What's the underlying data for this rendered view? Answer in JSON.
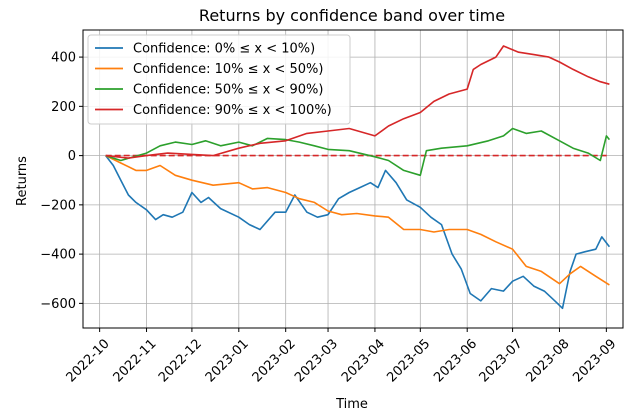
{
  "chart_data": {
    "type": "line",
    "title": "Returns by confidence band over time",
    "xlabel": "Time",
    "ylabel": "Returns",
    "xlim": [
      "2022-09-20",
      "2023-09-12"
    ],
    "ylim": [
      -700,
      510
    ],
    "grid": true,
    "legend_position": "top-left",
    "x_ticks": [
      "2022-10",
      "2022-11",
      "2022-12",
      "2023-01",
      "2023-02",
      "2023-03",
      "2023-04",
      "2023-05",
      "2023-06",
      "2023-07",
      "2023-08",
      "2023-09"
    ],
    "y_ticks": [
      -600,
      -400,
      -200,
      0,
      200,
      400
    ],
    "y_tick_labels": [
      "−600",
      "−400",
      "−200",
      "0",
      "200",
      "400"
    ],
    "reference_line": {
      "y": 0,
      "color": "#d62728",
      "style": "dashed"
    },
    "series": [
      {
        "name": "Confidence: 0% ≤ x < 10%)",
        "color": "#1f77b4",
        "points": [
          [
            "2022-10-05",
            0
          ],
          [
            "2022-10-10",
            -40
          ],
          [
            "2022-10-15",
            -100
          ],
          [
            "2022-10-20",
            -160
          ],
          [
            "2022-10-25",
            -190
          ],
          [
            "2022-11-01",
            -220
          ],
          [
            "2022-11-07",
            -260
          ],
          [
            "2022-11-12",
            -240
          ],
          [
            "2022-11-18",
            -250
          ],
          [
            "2022-11-25",
            -230
          ],
          [
            "2022-12-01",
            -150
          ],
          [
            "2022-12-07",
            -190
          ],
          [
            "2022-12-12",
            -170
          ],
          [
            "2022-12-20",
            -215
          ],
          [
            "2023-01-01",
            -250
          ],
          [
            "2023-01-08",
            -280
          ],
          [
            "2023-01-15",
            -300
          ],
          [
            "2023-01-25",
            -230
          ],
          [
            "2023-02-01",
            -230
          ],
          [
            "2023-02-07",
            -160
          ],
          [
            "2023-02-15",
            -230
          ],
          [
            "2023-02-22",
            -250
          ],
          [
            "2023-03-01",
            -240
          ],
          [
            "2023-03-08",
            -175
          ],
          [
            "2023-03-15",
            -150
          ],
          [
            "2023-03-22",
            -130
          ],
          [
            "2023-03-29",
            -110
          ],
          [
            "2023-04-03",
            -130
          ],
          [
            "2023-04-08",
            -60
          ],
          [
            "2023-04-15",
            -110
          ],
          [
            "2023-04-22",
            -180
          ],
          [
            "2023-05-01",
            -210
          ],
          [
            "2023-05-08",
            -250
          ],
          [
            "2023-05-15",
            -280
          ],
          [
            "2023-05-22",
            -400
          ],
          [
            "2023-05-28",
            -460
          ],
          [
            "2023-06-03",
            -560
          ],
          [
            "2023-06-10",
            -590
          ],
          [
            "2023-06-17",
            -540
          ],
          [
            "2023-06-25",
            -550
          ],
          [
            "2023-07-01",
            -510
          ],
          [
            "2023-07-08",
            -490
          ],
          [
            "2023-07-15",
            -530
          ],
          [
            "2023-07-22",
            -550
          ],
          [
            "2023-07-29",
            -590
          ],
          [
            "2023-08-03",
            -620
          ],
          [
            "2023-08-08",
            -470
          ],
          [
            "2023-08-12",
            -400
          ],
          [
            "2023-08-18",
            -390
          ],
          [
            "2023-08-25",
            -380
          ],
          [
            "2023-08-29",
            -330
          ],
          [
            "2023-09-03",
            -370
          ]
        ]
      },
      {
        "name": "Confidence: 10% ≤ x < 50%)",
        "color": "#ff7f0e",
        "points": [
          [
            "2022-10-05",
            0
          ],
          [
            "2022-10-15",
            -30
          ],
          [
            "2022-10-25",
            -60
          ],
          [
            "2022-11-01",
            -60
          ],
          [
            "2022-11-10",
            -40
          ],
          [
            "2022-11-20",
            -80
          ],
          [
            "2022-12-01",
            -100
          ],
          [
            "2022-12-15",
            -120
          ],
          [
            "2023-01-01",
            -110
          ],
          [
            "2023-01-10",
            -135
          ],
          [
            "2023-01-20",
            -130
          ],
          [
            "2023-02-01",
            -150
          ],
          [
            "2023-02-10",
            -175
          ],
          [
            "2023-02-20",
            -190
          ],
          [
            "2023-03-01",
            -225
          ],
          [
            "2023-03-10",
            -240
          ],
          [
            "2023-03-20",
            -235
          ],
          [
            "2023-04-01",
            -245
          ],
          [
            "2023-04-10",
            -250
          ],
          [
            "2023-04-20",
            -300
          ],
          [
            "2023-05-01",
            -300
          ],
          [
            "2023-05-10",
            -310
          ],
          [
            "2023-05-20",
            -300
          ],
          [
            "2023-06-01",
            -300
          ],
          [
            "2023-06-10",
            -320
          ],
          [
            "2023-06-20",
            -350
          ],
          [
            "2023-07-01",
            -380
          ],
          [
            "2023-07-10",
            -450
          ],
          [
            "2023-07-20",
            -470
          ],
          [
            "2023-08-01",
            -520
          ],
          [
            "2023-08-08",
            -480
          ],
          [
            "2023-08-15",
            -450
          ],
          [
            "2023-08-25",
            -490
          ],
          [
            "2023-09-03",
            -525
          ]
        ]
      },
      {
        "name": "Confidence: 50% ≤ x < 90%)",
        "color": "#2ca02c",
        "points": [
          [
            "2022-10-05",
            0
          ],
          [
            "2022-10-15",
            -20
          ],
          [
            "2022-11-01",
            10
          ],
          [
            "2022-11-10",
            40
          ],
          [
            "2022-11-20",
            55
          ],
          [
            "2022-12-01",
            45
          ],
          [
            "2022-12-10",
            60
          ],
          [
            "2022-12-20",
            40
          ],
          [
            "2023-01-01",
            55
          ],
          [
            "2023-01-10",
            40
          ],
          [
            "2023-01-20",
            70
          ],
          [
            "2023-02-01",
            65
          ],
          [
            "2023-02-10",
            55
          ],
          [
            "2023-02-20",
            40
          ],
          [
            "2023-03-01",
            25
          ],
          [
            "2023-03-15",
            20
          ],
          [
            "2023-04-01",
            -5
          ],
          [
            "2023-04-10",
            -20
          ],
          [
            "2023-04-20",
            -60
          ],
          [
            "2023-05-01",
            -80
          ],
          [
            "2023-05-05",
            20
          ],
          [
            "2023-05-15",
            30
          ],
          [
            "2023-06-01",
            40
          ],
          [
            "2023-06-15",
            60
          ],
          [
            "2023-06-25",
            80
          ],
          [
            "2023-07-01",
            110
          ],
          [
            "2023-07-10",
            90
          ],
          [
            "2023-07-20",
            100
          ],
          [
            "2023-08-01",
            60
          ],
          [
            "2023-08-10",
            30
          ],
          [
            "2023-08-20",
            10
          ],
          [
            "2023-08-28",
            -20
          ],
          [
            "2023-09-01",
            80
          ],
          [
            "2023-09-03",
            65
          ]
        ]
      },
      {
        "name": "Confidence: 90% ≤ x < 100%)",
        "color": "#d62728",
        "points": [
          [
            "2022-10-05",
            0
          ],
          [
            "2022-10-20",
            -10
          ],
          [
            "2022-11-01",
            0
          ],
          [
            "2022-11-15",
            10
          ],
          [
            "2022-12-01",
            5
          ],
          [
            "2022-12-15",
            0
          ],
          [
            "2023-01-01",
            30
          ],
          [
            "2023-01-15",
            50
          ],
          [
            "2023-02-01",
            60
          ],
          [
            "2023-02-15",
            90
          ],
          [
            "2023-03-01",
            100
          ],
          [
            "2023-03-15",
            110
          ],
          [
            "2023-04-01",
            80
          ],
          [
            "2023-04-10",
            120
          ],
          [
            "2023-04-20",
            150
          ],
          [
            "2023-05-01",
            175
          ],
          [
            "2023-05-10",
            220
          ],
          [
            "2023-05-20",
            250
          ],
          [
            "2023-06-01",
            270
          ],
          [
            "2023-06-05",
            350
          ],
          [
            "2023-06-10",
            370
          ],
          [
            "2023-06-20",
            400
          ],
          [
            "2023-06-25",
            445
          ],
          [
            "2023-07-05",
            420
          ],
          [
            "2023-07-15",
            410
          ],
          [
            "2023-07-25",
            400
          ],
          [
            "2023-08-01",
            380
          ],
          [
            "2023-08-10",
            350
          ],
          [
            "2023-08-20",
            320
          ],
          [
            "2023-08-28",
            300
          ],
          [
            "2023-09-03",
            290
          ]
        ]
      }
    ]
  }
}
